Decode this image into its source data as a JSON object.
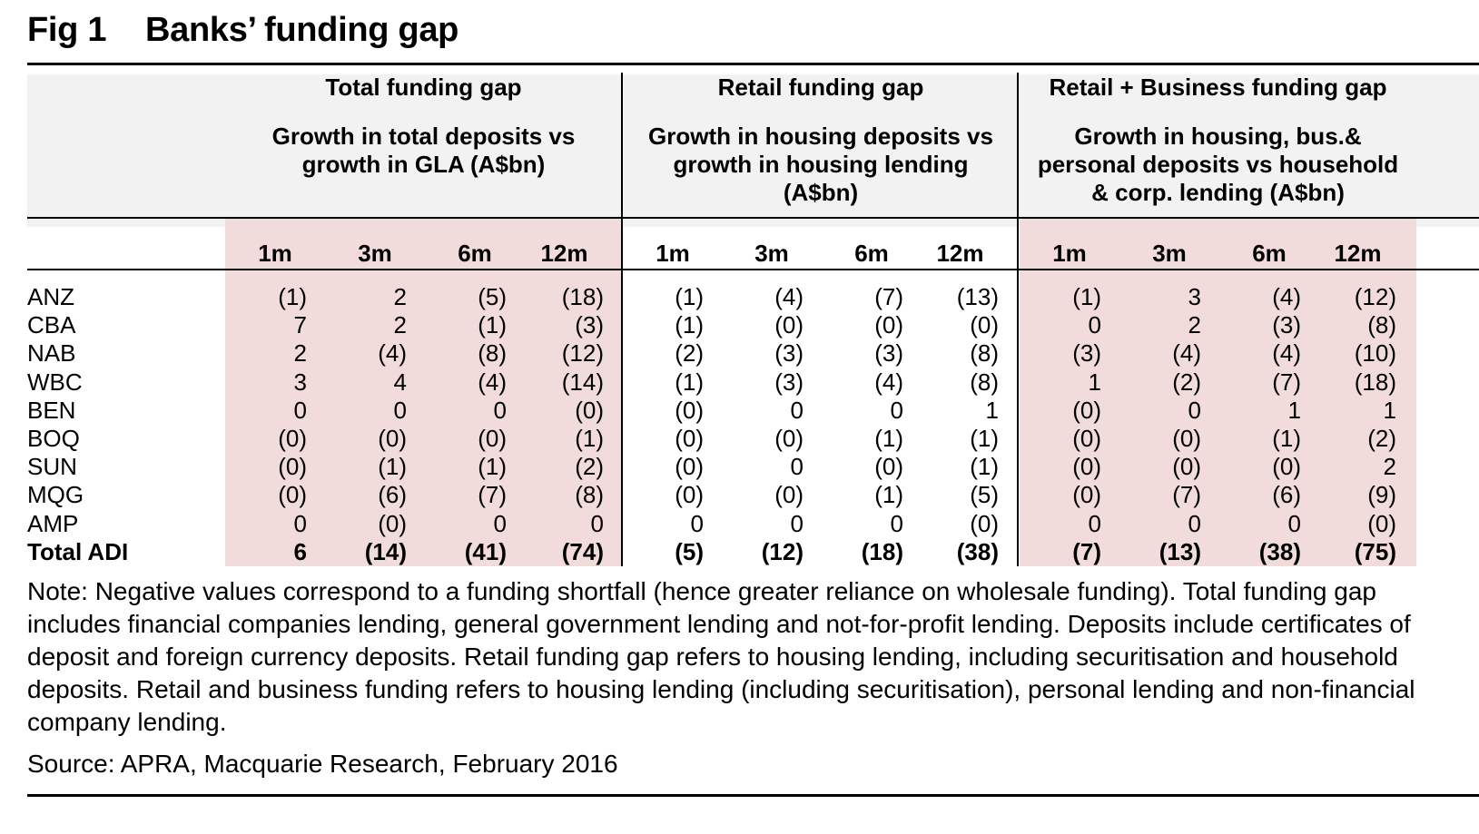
{
  "figure": {
    "label": "Fig 1",
    "title": "Banks’ funding gap"
  },
  "colors": {
    "header_bg": "#f2f2f2",
    "highlight": "#f2dcdb"
  },
  "chart_data": {
    "type": "table",
    "groups": [
      {
        "title": "Total funding gap",
        "subtitle": [
          "Growth in total deposits vs",
          "growth in GLA (A$bn)"
        ]
      },
      {
        "title": "Retail funding gap",
        "subtitle": [
          "Growth in housing deposits vs",
          "growth in housing lending",
          "(A$bn)"
        ]
      },
      {
        "title": "Retail + Business funding gap",
        "subtitle": [
          "Growth in housing, bus.&",
          "personal deposits vs household",
          "& corp. lending (A$bn)"
        ]
      }
    ],
    "periods": [
      "1m",
      "3m",
      "6m",
      "12m"
    ],
    "rows": [
      {
        "label": "ANZ",
        "values": [
          "(1)",
          "2",
          "(5)",
          "(18)",
          "(1)",
          "(4)",
          "(7)",
          "(13)",
          "(1)",
          "3",
          "(4)",
          "(12)"
        ]
      },
      {
        "label": "CBA",
        "values": [
          "7",
          "2",
          "(1)",
          "(3)",
          "(1)",
          "(0)",
          "(0)",
          "(0)",
          "0",
          "2",
          "(3)",
          "(8)"
        ]
      },
      {
        "label": "NAB",
        "values": [
          "2",
          "(4)",
          "(8)",
          "(12)",
          "(2)",
          "(3)",
          "(3)",
          "(8)",
          "(3)",
          "(4)",
          "(4)",
          "(10)"
        ]
      },
      {
        "label": "WBC",
        "values": [
          "3",
          "4",
          "(4)",
          "(14)",
          "(1)",
          "(3)",
          "(4)",
          "(8)",
          "1",
          "(2)",
          "(7)",
          "(18)"
        ]
      },
      {
        "label": "BEN",
        "values": [
          "0",
          "0",
          "0",
          "(0)",
          "(0)",
          "0",
          "0",
          "1",
          "(0)",
          "0",
          "1",
          "1"
        ]
      },
      {
        "label": "BOQ",
        "values": [
          "(0)",
          "(0)",
          "(0)",
          "(1)",
          "(0)",
          "(0)",
          "(1)",
          "(1)",
          "(0)",
          "(0)",
          "(1)",
          "(2)"
        ]
      },
      {
        "label": "SUN",
        "values": [
          "(0)",
          "(1)",
          "(1)",
          "(2)",
          "(0)",
          "0",
          "(0)",
          "(1)",
          "(0)",
          "(0)",
          "(0)",
          "2"
        ]
      },
      {
        "label": "MQG",
        "values": [
          "(0)",
          "(6)",
          "(7)",
          "(8)",
          "(0)",
          "(0)",
          "(1)",
          "(5)",
          "(0)",
          "(7)",
          "(6)",
          "(9)"
        ]
      },
      {
        "label": "AMP",
        "values": [
          "0",
          "(0)",
          "0",
          "0",
          "0",
          "0",
          "0",
          "(0)",
          "0",
          "0",
          "0",
          "(0)"
        ]
      },
      {
        "label": "Total ADI",
        "values": [
          "6",
          "(14)",
          "(41)",
          "(74)",
          "(5)",
          "(12)",
          "(18)",
          "(38)",
          "(7)",
          "(13)",
          "(38)",
          "(75)"
        ]
      }
    ]
  },
  "note": "Note: Negative values correspond to a funding shortfall (hence greater reliance on wholesale funding). Total funding gap includes financial companies lending, general government lending and not-for-profit lending. Deposits include certificates of deposit and foreign currency deposits. Retail funding gap refers to housing lending, including securitisation and household deposits. Retail and business funding refers to housing lending (including securitisation), personal lending and non-financial company lending.",
  "source": "Source: APRA, Macquarie Research, February 2016"
}
